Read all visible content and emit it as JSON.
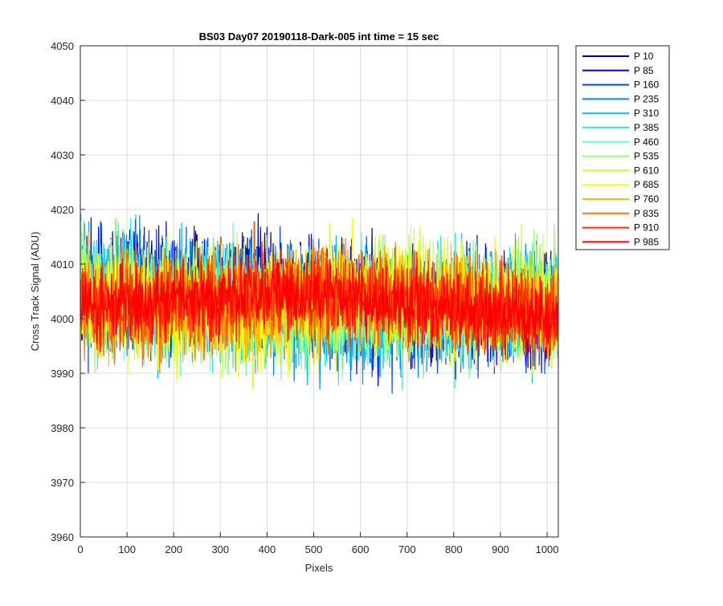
{
  "chart_data": {
    "type": "line",
    "title": "BS03 Day07 20190118-Dark-005 int time = 15 sec",
    "xlabel": "Pixels",
    "ylabel": "Cross Track Signal (ADU)",
    "xlim": [
      0,
      1024
    ],
    "ylim": [
      3960,
      4050
    ],
    "x_ticks": [
      0,
      100,
      200,
      300,
      400,
      500,
      600,
      700,
      800,
      900,
      1000
    ],
    "y_ticks": [
      3960,
      3970,
      3980,
      3990,
      4000,
      4010,
      4020,
      4030,
      4040,
      4050
    ],
    "grid": true,
    "legend_position": "outside-right",
    "x_range": [
      1,
      1024
    ],
    "series": [
      {
        "name": "P 10",
        "color": "#0000AA",
        "mean": 4005,
        "amplitude": 9
      },
      {
        "name": "P 85",
        "color": "#0000EE",
        "mean": 4005,
        "amplitude": 9
      },
      {
        "name": "P 160",
        "color": "#0044FF",
        "mean": 4004,
        "amplitude": 9
      },
      {
        "name": "P 235",
        "color": "#0088FF",
        "mean": 4004,
        "amplitude": 9
      },
      {
        "name": "P 310",
        "color": "#00BBFF",
        "mean": 4004,
        "amplitude": 9
      },
      {
        "name": "P 385",
        "color": "#22EEEE",
        "mean": 4004,
        "amplitude": 9
      },
      {
        "name": "P 460",
        "color": "#66FFBB",
        "mean": 4004,
        "amplitude": 9
      },
      {
        "name": "P 535",
        "color": "#99FF77",
        "mean": 4004,
        "amplitude": 9
      },
      {
        "name": "P 610",
        "color": "#CCFF33",
        "mean": 4004,
        "amplitude": 9
      },
      {
        "name": "P 685",
        "color": "#FFFF00",
        "mean": 4004,
        "amplitude": 9
      },
      {
        "name": "P 760",
        "color": "#FFBB00",
        "mean": 4004,
        "amplitude": 8
      },
      {
        "name": "P 835",
        "color": "#FF7700",
        "mean": 4004,
        "amplitude": 8
      },
      {
        "name": "P 910",
        "color": "#FF3300",
        "mean": 4004,
        "amplitude": 7
      },
      {
        "name": "P 985",
        "color": "#FF0000",
        "mean": 4004,
        "amplitude": 6
      }
    ]
  }
}
